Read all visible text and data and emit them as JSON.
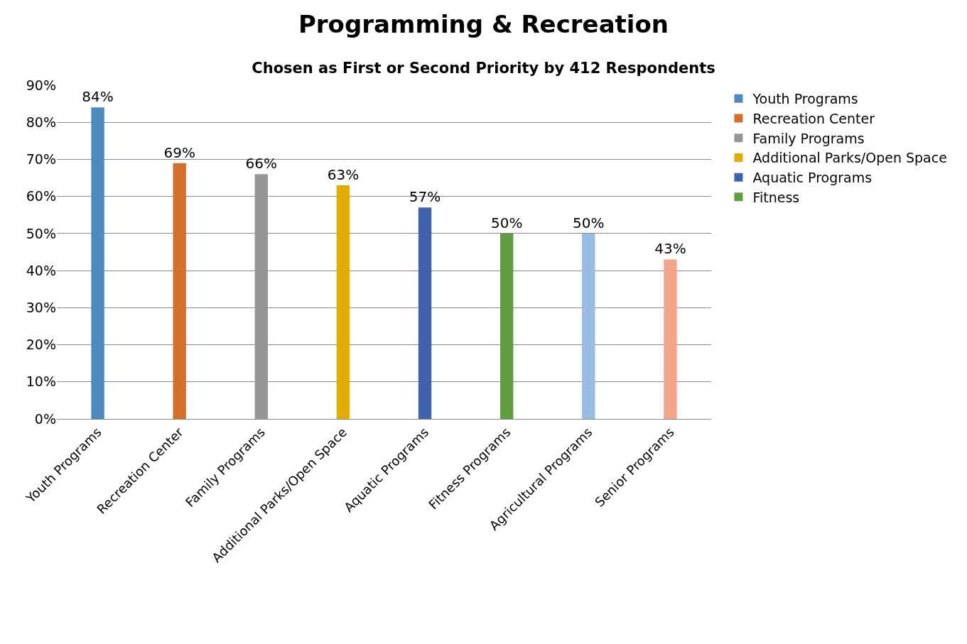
{
  "chart_data": {
    "type": "bar",
    "title": "Programming & Recreation",
    "subtitle": "Chosen as First or Second Priority by 412 Respondents",
    "categories": [
      "Youth Programs",
      "Recreation Center",
      "Family Programs",
      "Additional Parks/Open Space",
      "Aquatic Programs",
      "Fitness Programs",
      "Agricultural Programs",
      "Senior Programs"
    ],
    "series": [
      {
        "name": "Youth Programs",
        "color": "#4e89c0",
        "values": [
          84,
          null,
          null,
          null,
          null,
          null,
          null,
          null
        ],
        "value_labels": [
          "84%",
          null,
          null,
          null,
          null,
          null,
          null,
          null
        ]
      },
      {
        "name": "Recreation Center",
        "color": "#d46f2c",
        "values": [
          null,
          69,
          null,
          null,
          null,
          null,
          null,
          null
        ],
        "value_labels": [
          null,
          "69%",
          null,
          null,
          null,
          null,
          null,
          null
        ]
      },
      {
        "name": "Family Programs",
        "color": "#969696",
        "values": [
          null,
          null,
          66,
          null,
          null,
          null,
          null,
          null
        ],
        "value_labels": [
          null,
          null,
          "66%",
          null,
          null,
          null,
          null,
          null
        ]
      },
      {
        "name": "Additional Parks/Open Space",
        "color": "#e3ac00",
        "values": [
          null,
          null,
          null,
          63,
          null,
          null,
          null,
          null
        ],
        "value_labels": [
          null,
          null,
          null,
          "63%",
          null,
          null,
          null,
          null
        ]
      },
      {
        "name": "Aquatic Programs",
        "color": "#3f62ad",
        "values": [
          null,
          null,
          null,
          null,
          57,
          null,
          null,
          null
        ],
        "value_labels": [
          null,
          null,
          null,
          null,
          "57%",
          null,
          null,
          null
        ]
      },
      {
        "name": "Fitness",
        "color": "#629c42",
        "values": [
          null,
          null,
          null,
          null,
          null,
          50,
          null,
          null
        ],
        "value_labels": [
          null,
          null,
          null,
          null,
          null,
          "50%",
          null,
          null
        ]
      },
      {
        "color": "#99bce3",
        "values": [
          null,
          null,
          null,
          null,
          null,
          null,
          50,
          null
        ],
        "value_labels": [
          null,
          null,
          null,
          null,
          null,
          null,
          "50%",
          null
        ]
      },
      {
        "color": "#f2a68a",
        "values": [
          null,
          null,
          null,
          null,
          null,
          null,
          null,
          43
        ],
        "value_labels": [
          null,
          null,
          null,
          null,
          null,
          null,
          null,
          "43%"
        ]
      }
    ],
    "ylim": [
      0,
      90
    ],
    "yticks": [
      {
        "value": 0,
        "label": "0%"
      },
      {
        "value": 10,
        "label": "10%"
      },
      {
        "value": 20,
        "label": "20%"
      },
      {
        "value": 30,
        "label": "30%"
      },
      {
        "value": 40,
        "label": "40%"
      },
      {
        "value": 50,
        "label": "50%"
      },
      {
        "value": 60,
        "label": "60%"
      },
      {
        "value": 70,
        "label": "70%"
      },
      {
        "value": 80,
        "label": "80%"
      },
      {
        "value": 90,
        "label": "90%"
      }
    ],
    "grid": "y",
    "legend": "top right"
  }
}
